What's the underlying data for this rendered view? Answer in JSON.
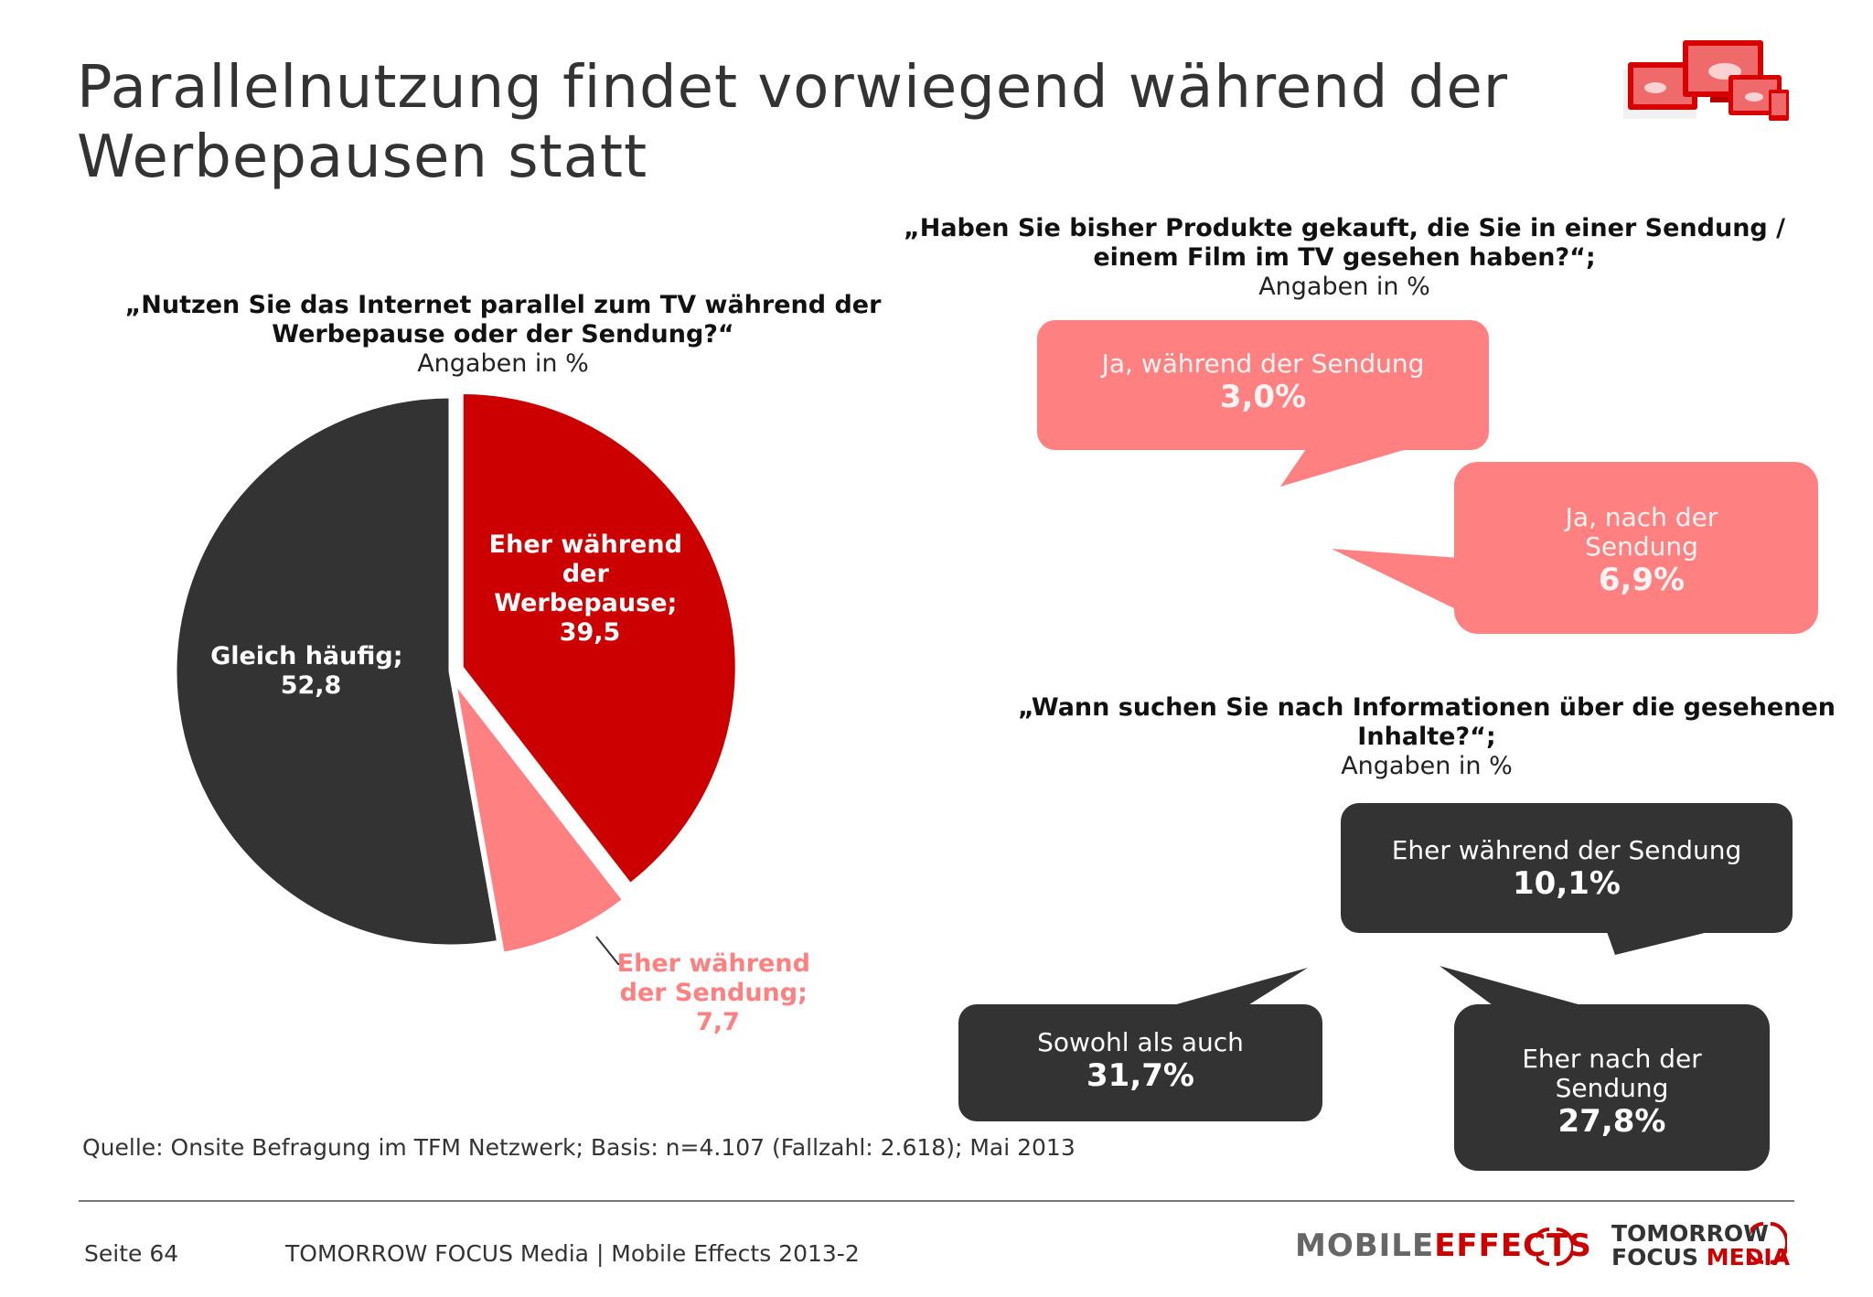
{
  "title": "Parallelnutzung findet vorwiegend während der Werbepausen statt",
  "chart_data": [
    {
      "type": "pie",
      "title": "„Nutzen Sie das Internet parallel zum TV während der Werbepause oder der Sendung?“",
      "subtitle": "Angaben in %",
      "slices": [
        {
          "label": "Eher während der Werbepause;",
          "value": 39.5,
          "value_text": "39,5",
          "color": "#cc0000"
        },
        {
          "label": "Eher während der Sendung;",
          "value": 7.7,
          "value_text": "7,7",
          "color": "#ff8080"
        },
        {
          "label": "Gleich häufig;",
          "value": 52.8,
          "value_text": "52,8",
          "color": "#333333"
        }
      ]
    },
    {
      "type": "table",
      "title": "„Haben Sie bisher Produkte gekauft, die Sie in einer Sendung / einem Film im TV gesehen haben?“;",
      "subtitle": "Angaben in %",
      "items": [
        {
          "label": "Ja, während der Sendung",
          "value": 3.0,
          "value_text": "3,0%",
          "color": "#ff8080"
        },
        {
          "label": "Ja, nach der Sendung",
          "value": 6.9,
          "value_text": "6,9%",
          "color": "#ff8080"
        }
      ]
    },
    {
      "type": "table",
      "title": "„Wann suchen Sie nach Informationen über die gesehenen Inhalte?“;",
      "subtitle": "Angaben in %",
      "items": [
        {
          "label": "Eher während der Sendung",
          "value": 10.1,
          "value_text": "10,1%",
          "color": "#333333"
        },
        {
          "label": "Sowohl als auch",
          "value": 31.7,
          "value_text": "31,7%",
          "color": "#333333"
        },
        {
          "label": "Eher nach der Sendung",
          "value": 27.8,
          "value_text": "27,8%",
          "color": "#333333"
        }
      ]
    }
  ],
  "source": "Quelle: Onsite Befragung im TFM Netzwerk; Basis: n=4.107 (Fallzahl: 2.618); Mai 2013",
  "footer": {
    "page": "Seite 64",
    "publication": "TOMORROW FOCUS Media | Mobile Effects 2013-2",
    "logo_mobile": "MOBILE",
    "logo_effects": "EFFECTS",
    "logo_tomorrow": "TOMORROW",
    "logo_focus": "FOCUS",
    "logo_media": "MEDIA"
  },
  "colors": {
    "accent_red": "#cc0000",
    "light_red": "#ff8080",
    "dark": "#333333"
  }
}
